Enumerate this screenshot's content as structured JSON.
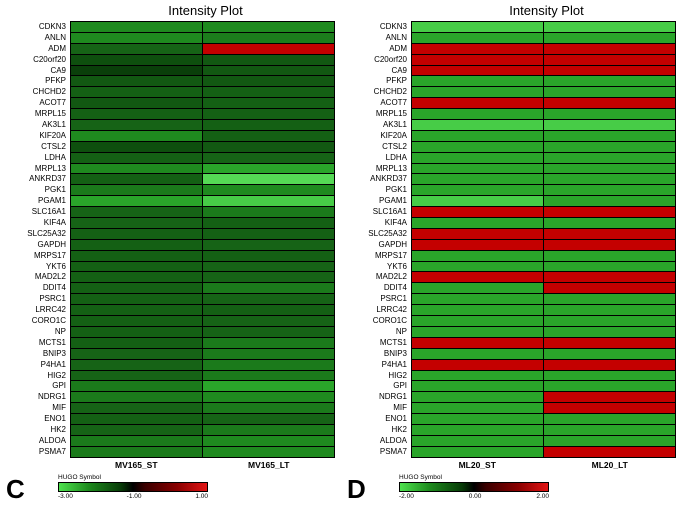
{
  "chart_data": [
    {
      "type": "heatmap",
      "panel_label": "C",
      "title": "Intensity Plot",
      "columns": [
        "MV165_ST",
        "MV165_LT"
      ],
      "colorbar": {
        "label": "HUGO Symbol",
        "ticks": [
          "-3.00",
          "-1.00",
          "1.00"
        ],
        "range": [
          -3,
          1
        ],
        "colors": [
          "green",
          "black",
          "red"
        ]
      },
      "rows": [
        "CDKN3",
        "ANLN",
        "ADM",
        "C20orf20",
        "CA9",
        "PFKP",
        "CHCHD2",
        "ACOT7",
        "MRPL15",
        "AK3L1",
        "KIF20A",
        "CTSL2",
        "LDHA",
        "MRPL13",
        "ANKRD37",
        "PGK1",
        "PGAM1",
        "SLC16A1",
        "KIF4A",
        "SLC25A32",
        "GAPDH",
        "MRPS17",
        "YKT6",
        "MAD2L2",
        "DDIT4",
        "PSRC1",
        "LRRC42",
        "CORO1C",
        "NP",
        "MCTS1",
        "BNIP3",
        "P4HA1",
        "HIG2",
        "GPI",
        "NDRG1",
        "MIF",
        "ENO1",
        "HK2",
        "ALDOA",
        "PSMA7"
      ],
      "cell_colors": [
        [
          "#1f8a1f",
          "#1f8a1f"
        ],
        [
          "#1f8a1f",
          "#1c7d1c"
        ],
        [
          "#166316",
          "#c40000"
        ],
        [
          "#0e4f0e",
          "#125812"
        ],
        [
          "#0a3f0a",
          "#125812"
        ],
        [
          "#125812",
          "#125812"
        ],
        [
          "#146014",
          "#146014"
        ],
        [
          "#125812",
          "#146014"
        ],
        [
          "#146014",
          "#146014"
        ],
        [
          "#166316",
          "#146014"
        ],
        [
          "#1f8a1f",
          "#146014"
        ],
        [
          "#0e4f0e",
          "#125812"
        ],
        [
          "#146014",
          "#166316"
        ],
        [
          "#1f8a1f",
          "#2aa52a"
        ],
        [
          "#146014",
          "#55d955"
        ],
        [
          "#1b7a1b",
          "#1f8a1f"
        ],
        [
          "#2aa52a",
          "#47cc47"
        ],
        [
          "#166316",
          "#1b7a1b"
        ],
        [
          "#166316",
          "#146014"
        ],
        [
          "#146014",
          "#146014"
        ],
        [
          "#146014",
          "#166316"
        ],
        [
          "#146014",
          "#146014"
        ],
        [
          "#146014",
          "#166316"
        ],
        [
          "#146014",
          "#166316"
        ],
        [
          "#146014",
          "#1b7a1b"
        ],
        [
          "#146014",
          "#166316"
        ],
        [
          "#146014",
          "#146014"
        ],
        [
          "#146014",
          "#166316"
        ],
        [
          "#146014",
          "#166316"
        ],
        [
          "#146014",
          "#1b7a1b"
        ],
        [
          "#166316",
          "#1b7a1b"
        ],
        [
          "#166316",
          "#1b7a1b"
        ],
        [
          "#166316",
          "#1b7a1b"
        ],
        [
          "#1b7a1b",
          "#2aa52a"
        ],
        [
          "#1b7a1b",
          "#1f8a1f"
        ],
        [
          "#166316",
          "#1b7a1b"
        ],
        [
          "#146014",
          "#166316"
        ],
        [
          "#166316",
          "#1b7a1b"
        ],
        [
          "#1b7a1b",
          "#1f8a1f"
        ],
        [
          "#1b7a1b",
          "#1f8a1f"
        ]
      ],
      "values_estimated": [
        [
          -1.9,
          -1.9
        ],
        [
          -1.9,
          -1.8
        ],
        [
          -1.5,
          0.8
        ],
        [
          -1.2,
          -1.3
        ],
        [
          -1.1,
          -1.3
        ],
        [
          -1.3,
          -1.3
        ],
        [
          -1.4,
          -1.4
        ],
        [
          -1.3,
          -1.4
        ],
        [
          -1.4,
          -1.4
        ],
        [
          -1.5,
          -1.4
        ],
        [
          -1.9,
          -1.4
        ],
        [
          -1.2,
          -1.3
        ],
        [
          -1.4,
          -1.5
        ],
        [
          -1.9,
          -2.2
        ],
        [
          -1.4,
          -2.8
        ],
        [
          -1.7,
          -1.9
        ],
        [
          -2.2,
          -2.6
        ],
        [
          -1.5,
          -1.7
        ],
        [
          -1.5,
          -1.4
        ],
        [
          -1.4,
          -1.4
        ],
        [
          -1.4,
          -1.5
        ],
        [
          -1.4,
          -1.4
        ],
        [
          -1.4,
          -1.5
        ],
        [
          -1.4,
          -1.5
        ],
        [
          -1.4,
          -1.7
        ],
        [
          -1.4,
          -1.5
        ],
        [
          -1.4,
          -1.4
        ],
        [
          -1.4,
          -1.5
        ],
        [
          -1.4,
          -1.5
        ],
        [
          -1.4,
          -1.7
        ],
        [
          -1.5,
          -1.7
        ],
        [
          -1.5,
          -1.7
        ],
        [
          -1.5,
          -1.7
        ],
        [
          -1.7,
          -2.2
        ],
        [
          -1.7,
          -1.9
        ],
        [
          -1.5,
          -1.7
        ],
        [
          -1.4,
          -1.5
        ],
        [
          -1.5,
          -1.7
        ],
        [
          -1.7,
          -1.9
        ],
        [
          -1.7,
          -1.9
        ]
      ]
    },
    {
      "type": "heatmap",
      "panel_label": "D",
      "title": "Intensity Plot",
      "columns": [
        "ML20_ST",
        "ML20_LT"
      ],
      "colorbar": {
        "label": "HUGO Symbol",
        "ticks": [
          "-2.00",
          "0.00",
          "2.00"
        ],
        "range": [
          -2,
          2
        ],
        "colors": [
          "green",
          "black",
          "red"
        ]
      },
      "rows": [
        "CDKN3",
        "ANLN",
        "ADM",
        "C20orf20",
        "CA9",
        "PFKP",
        "CHCHD2",
        "ACOT7",
        "MRPL15",
        "AK3L1",
        "KIF20A",
        "CTSL2",
        "LDHA",
        "MRPL13",
        "ANKRD37",
        "PGK1",
        "PGAM1",
        "SLC16A1",
        "KIF4A",
        "SLC25A32",
        "GAPDH",
        "MRPS17",
        "YKT6",
        "MAD2L2",
        "DDIT4",
        "PSRC1",
        "LRRC42",
        "CORO1C",
        "NP",
        "MCTS1",
        "BNIP3",
        "P4HA1",
        "HIG2",
        "GPI",
        "NDRG1",
        "MIF",
        "ENO1",
        "HK2",
        "ALDOA",
        "PSMA7"
      ],
      "cell_colors": [
        [
          "#47cc47",
          "#47cc47"
        ],
        [
          "#2aa52a",
          "#2aa52a"
        ],
        [
          "#c40000",
          "#c40000"
        ],
        [
          "#c40000",
          "#c40000"
        ],
        [
          "#c40000",
          "#c40000"
        ],
        [
          "#2aa52a",
          "#2aa52a"
        ],
        [
          "#2aa52a",
          "#2aa52a"
        ],
        [
          "#c40000",
          "#c40000"
        ],
        [
          "#2aa52a",
          "#2aa52a"
        ],
        [
          "#47cc47",
          "#47cc47"
        ],
        [
          "#2aa52a",
          "#2aa52a"
        ],
        [
          "#2aa52a",
          "#2aa52a"
        ],
        [
          "#2aa52a",
          "#2aa52a"
        ],
        [
          "#2aa52a",
          "#2aa52a"
        ],
        [
          "#2aa52a",
          "#2aa52a"
        ],
        [
          "#2aa52a",
          "#2aa52a"
        ],
        [
          "#47cc47",
          "#2aa52a"
        ],
        [
          "#c40000",
          "#c40000"
        ],
        [
          "#2aa52a",
          "#2aa52a"
        ],
        [
          "#c40000",
          "#c40000"
        ],
        [
          "#c40000",
          "#c40000"
        ],
        [
          "#2aa52a",
          "#2aa52a"
        ],
        [
          "#2aa52a",
          "#2aa52a"
        ],
        [
          "#c40000",
          "#c40000"
        ],
        [
          "#2aa52a",
          "#c40000"
        ],
        [
          "#2aa52a",
          "#2aa52a"
        ],
        [
          "#2aa52a",
          "#2aa52a"
        ],
        [
          "#2aa52a",
          "#2aa52a"
        ],
        [
          "#2aa52a",
          "#2aa52a"
        ],
        [
          "#c40000",
          "#c40000"
        ],
        [
          "#2aa52a",
          "#2aa52a"
        ],
        [
          "#c40000",
          "#c40000"
        ],
        [
          "#2aa52a",
          "#2aa52a"
        ],
        [
          "#2aa52a",
          "#2aa52a"
        ],
        [
          "#2aa52a",
          "#c40000"
        ],
        [
          "#2aa52a",
          "#c40000"
        ],
        [
          "#2aa52a",
          "#2aa52a"
        ],
        [
          "#2aa52a",
          "#2aa52a"
        ],
        [
          "#2aa52a",
          "#2aa52a"
        ],
        [
          "#2aa52a",
          "#c40000"
        ]
      ],
      "values_estimated": [
        [
          -1.7,
          -1.7
        ],
        [
          -1.2,
          -1.2
        ],
        [
          1.6,
          1.6
        ],
        [
          1.6,
          1.6
        ],
        [
          1.6,
          1.6
        ],
        [
          -1.2,
          -1.2
        ],
        [
          -1.2,
          -1.2
        ],
        [
          1.6,
          1.6
        ],
        [
          -1.2,
          -1.2
        ],
        [
          -1.7,
          -1.7
        ],
        [
          -1.2,
          -1.2
        ],
        [
          -1.2,
          -1.2
        ],
        [
          -1.2,
          -1.2
        ],
        [
          -1.2,
          -1.2
        ],
        [
          -1.2,
          -1.2
        ],
        [
          -1.2,
          -1.2
        ],
        [
          -1.7,
          -1.2
        ],
        [
          1.6,
          1.6
        ],
        [
          -1.2,
          -1.2
        ],
        [
          1.6,
          1.6
        ],
        [
          1.6,
          1.6
        ],
        [
          -1.2,
          -1.2
        ],
        [
          -1.2,
          -1.2
        ],
        [
          1.6,
          1.6
        ],
        [
          -1.2,
          1.6
        ],
        [
          -1.2,
          -1.2
        ],
        [
          -1.2,
          -1.2
        ],
        [
          -1.2,
          -1.2
        ],
        [
          -1.2,
          -1.2
        ],
        [
          1.6,
          1.6
        ],
        [
          -1.2,
          -1.2
        ],
        [
          1.6,
          1.6
        ],
        [
          -1.2,
          -1.2
        ],
        [
          -1.2,
          -1.2
        ],
        [
          -1.2,
          1.6
        ],
        [
          -1.2,
          1.6
        ],
        [
          -1.2,
          -1.2
        ],
        [
          -1.2,
          -1.2
        ],
        [
          -1.2,
          -1.2
        ],
        [
          -1.2,
          1.6
        ]
      ]
    }
  ]
}
